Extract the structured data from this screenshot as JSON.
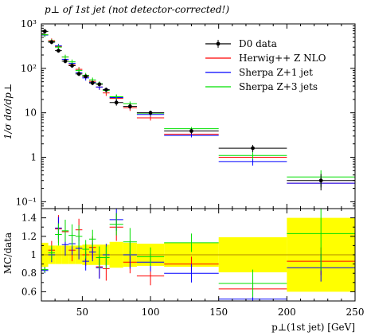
{
  "chart_data": [
    {
      "type": "line",
      "title": "p⊥ of 1st jet (not detector-corrected!)",
      "ylabel": "1/σ dσ/dp⊥",
      "xlabel": "",
      "xlim": [
        20,
        250
      ],
      "ylim": [
        0.07,
        1000
      ],
      "yscale": "log",
      "yticks": [
        {
          "v": 0.1,
          "label": "10⁻¹"
        },
        {
          "v": 1,
          "label": "1"
        },
        {
          "v": 10,
          "label": "10"
        },
        {
          "v": 100,
          "label": "10²"
        },
        {
          "v": 1000,
          "label": "10³"
        }
      ],
      "legend_position": "top-right",
      "bins": [
        [
          20,
          25
        ],
        [
          25,
          30
        ],
        [
          30,
          35
        ],
        [
          35,
          40
        ],
        [
          40,
          45
        ],
        [
          45,
          50
        ],
        [
          50,
          55
        ],
        [
          55,
          60
        ],
        [
          60,
          65
        ],
        [
          65,
          70
        ],
        [
          70,
          80
        ],
        [
          80,
          90
        ],
        [
          90,
          110
        ],
        [
          110,
          150
        ],
        [
          150,
          200
        ],
        [
          200,
          250
        ]
      ],
      "series": [
        {
          "name": "D0 data",
          "color": "#000000",
          "style": "data",
          "x": [
            22.5,
            27.5,
            32.5,
            37.5,
            42.5,
            47.5,
            52.5,
            57.5,
            62.5,
            67.5,
            75,
            85,
            100,
            130,
            175,
            225
          ],
          "values": [
            680,
            390,
            250,
            145,
            115,
            75,
            66,
            47,
            44,
            33,
            17,
            14,
            10,
            3.9,
            1.6,
            0.3
          ],
          "err": [
            90,
            40,
            25,
            15,
            12,
            8,
            6,
            5,
            4,
            3.5,
            2.5,
            2,
            1.2,
            0.5,
            0.3,
            0.12
          ]
        },
        {
          "name": "Herwig++ Z NLO",
          "color": "#ff0000",
          "style": "mc",
          "values": [
            570,
            420,
            310,
            180,
            120,
            95,
            66,
            51,
            38,
            28,
            21,
            13,
            7.7,
            3.3,
            1.0,
            0.26
          ],
          "err": [
            60,
            50,
            40,
            22,
            15,
            12,
            9,
            7,
            5,
            4,
            3,
            2,
            1,
            0.3,
            0.1,
            0.04
          ]
        },
        {
          "name": "Sherpa Z+1 jet",
          "color": "#0000ff",
          "style": "mc",
          "values": [
            560,
            390,
            320,
            160,
            130,
            80,
            61,
            48,
            38,
            33,
            22,
            14,
            9.2,
            3.1,
            0.8,
            0.26
          ],
          "err": [
            50,
            40,
            35,
            18,
            15,
            10,
            8,
            6,
            5,
            4,
            3,
            2,
            1,
            0.3,
            0.15,
            0.05
          ]
        },
        {
          "name": "Sherpa Z+3 jets",
          "color": "#00e000",
          "style": "mc",
          "values": [
            570,
            400,
            300,
            180,
            140,
            90,
            70,
            55,
            45,
            32,
            23,
            16,
            9.8,
            4.4,
            1.1,
            0.36
          ],
          "err": [
            60,
            50,
            40,
            22,
            18,
            12,
            9,
            7,
            6,
            4,
            3,
            2,
            1.2,
            0.4,
            0.2,
            0.15
          ]
        }
      ]
    },
    {
      "type": "line",
      "title": "",
      "ylabel": "MC/data",
      "xlabel": "p⊥(1st jet) [GeV]",
      "xlim": [
        20,
        250
      ],
      "ylim": [
        0.5,
        1.5
      ],
      "yticks": [
        {
          "v": 0.6,
          "label": "0.6"
        },
        {
          "v": 0.8,
          "label": "0.8"
        },
        {
          "v": 1.0,
          "label": "1"
        },
        {
          "v": 1.2,
          "label": "1.2"
        },
        {
          "v": 1.4,
          "label": "1.4"
        }
      ],
      "xticks": [
        {
          "v": 50,
          "label": "50"
        },
        {
          "v": 100,
          "label": "100"
        },
        {
          "v": 150,
          "label": "150"
        },
        {
          "v": 200,
          "label": "200"
        },
        {
          "v": 250,
          "label": "250"
        }
      ],
      "band_color": "#ffff00",
      "band_halfwidth": [
        0.13,
        0.1,
        0.1,
        0.1,
        0.1,
        0.1,
        0.11,
        0.11,
        0.11,
        0.11,
        0.14,
        0.13,
        0.12,
        0.13,
        0.19,
        0.4
      ],
      "series": [
        {
          "name": "Herwig++ Z NLO",
          "color": "#ff0000",
          "values": [
            0.84,
            1.05,
            1.28,
            1.25,
            1.05,
            1.27,
            1.0,
            1.08,
            0.87,
            0.85,
            1.3,
            0.92,
            0.77,
            0.9,
            0.63,
            0.93
          ],
          "err": [
            0.03,
            0.1,
            0.15,
            0.12,
            0.12,
            0.12,
            0.12,
            0.12,
            0.12,
            0.13,
            0.15,
            0.12,
            0.1,
            0.08,
            0.1,
            0.15
          ]
        },
        {
          "name": "Sherpa Z+1 jet",
          "color": "#0000ff",
          "values": [
            0.83,
            1.0,
            1.29,
            1.11,
            1.12,
            1.07,
            0.93,
            1.03,
            0.86,
            1.0,
            1.38,
            1.0,
            0.92,
            0.8,
            0.52,
            0.86
          ],
          "err": [
            0.03,
            0.08,
            0.12,
            0.12,
            0.12,
            0.12,
            0.1,
            0.1,
            0.12,
            0.12,
            0.12,
            0.15,
            0.1,
            0.1,
            0.15,
            0.15
          ]
        },
        {
          "name": "Sherpa Z+3 jets",
          "color": "#00e000",
          "values": [
            0.84,
            1.02,
            1.22,
            1.26,
            1.21,
            1.2,
            1.06,
            1.17,
            0.97,
            0.97,
            1.33,
            1.14,
            0.98,
            1.13,
            0.69,
            1.23
          ],
          "err": [
            0.03,
            0.08,
            0.12,
            0.12,
            0.12,
            0.12,
            0.1,
            0.1,
            0.12,
            0.12,
            0.12,
            0.15,
            0.1,
            0.1,
            0.15,
            0.4
          ]
        }
      ]
    }
  ]
}
